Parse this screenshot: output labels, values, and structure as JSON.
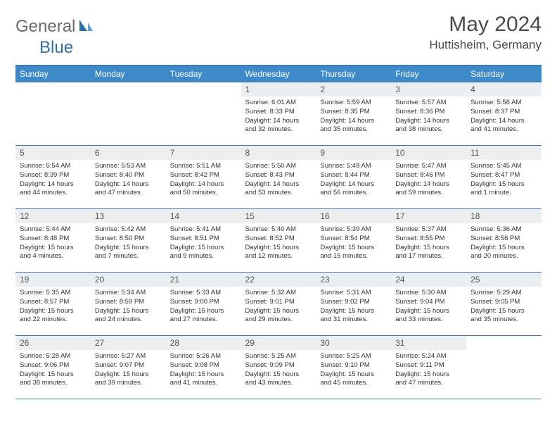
{
  "logo": {
    "part1": "General",
    "part2": "Blue"
  },
  "title": "May 2024",
  "location": "Huttisheim, Germany",
  "colors": {
    "header_bg": "#3e8ac9",
    "border": "#3e79b4",
    "daynum_bg": "#eceff1",
    "text_gray": "#4b4b4b",
    "logo_gray": "#6b6b6b",
    "logo_blue": "#2f6fa8"
  },
  "daysOfWeek": [
    "Sunday",
    "Monday",
    "Tuesday",
    "Wednesday",
    "Thursday",
    "Friday",
    "Saturday"
  ],
  "weeks": [
    [
      null,
      null,
      null,
      {
        "n": "1",
        "sr": "6:01 AM",
        "ss": "8:33 PM",
        "dl": "14 hours and 32 minutes."
      },
      {
        "n": "2",
        "sr": "5:59 AM",
        "ss": "8:35 PM",
        "dl": "14 hours and 35 minutes."
      },
      {
        "n": "3",
        "sr": "5:57 AM",
        "ss": "8:36 PM",
        "dl": "14 hours and 38 minutes."
      },
      {
        "n": "4",
        "sr": "5:56 AM",
        "ss": "8:37 PM",
        "dl": "14 hours and 41 minutes."
      }
    ],
    [
      {
        "n": "5",
        "sr": "5:54 AM",
        "ss": "8:39 PM",
        "dl": "14 hours and 44 minutes."
      },
      {
        "n": "6",
        "sr": "5:53 AM",
        "ss": "8:40 PM",
        "dl": "14 hours and 47 minutes."
      },
      {
        "n": "7",
        "sr": "5:51 AM",
        "ss": "8:42 PM",
        "dl": "14 hours and 50 minutes."
      },
      {
        "n": "8",
        "sr": "5:50 AM",
        "ss": "8:43 PM",
        "dl": "14 hours and 53 minutes."
      },
      {
        "n": "9",
        "sr": "5:48 AM",
        "ss": "8:44 PM",
        "dl": "14 hours and 56 minutes."
      },
      {
        "n": "10",
        "sr": "5:47 AM",
        "ss": "8:46 PM",
        "dl": "14 hours and 59 minutes."
      },
      {
        "n": "11",
        "sr": "5:45 AM",
        "ss": "8:47 PM",
        "dl": "15 hours and 1 minute."
      }
    ],
    [
      {
        "n": "12",
        "sr": "5:44 AM",
        "ss": "8:48 PM",
        "dl": "15 hours and 4 minutes."
      },
      {
        "n": "13",
        "sr": "5:42 AM",
        "ss": "8:50 PM",
        "dl": "15 hours and 7 minutes."
      },
      {
        "n": "14",
        "sr": "5:41 AM",
        "ss": "8:51 PM",
        "dl": "15 hours and 9 minutes."
      },
      {
        "n": "15",
        "sr": "5:40 AM",
        "ss": "8:52 PM",
        "dl": "15 hours and 12 minutes."
      },
      {
        "n": "16",
        "sr": "5:39 AM",
        "ss": "8:54 PM",
        "dl": "15 hours and 15 minutes."
      },
      {
        "n": "17",
        "sr": "5:37 AM",
        "ss": "8:55 PM",
        "dl": "15 hours and 17 minutes."
      },
      {
        "n": "18",
        "sr": "5:36 AM",
        "ss": "8:56 PM",
        "dl": "15 hours and 20 minutes."
      }
    ],
    [
      {
        "n": "19",
        "sr": "5:35 AM",
        "ss": "8:57 PM",
        "dl": "15 hours and 22 minutes."
      },
      {
        "n": "20",
        "sr": "5:34 AM",
        "ss": "8:59 PM",
        "dl": "15 hours and 24 minutes."
      },
      {
        "n": "21",
        "sr": "5:33 AM",
        "ss": "9:00 PM",
        "dl": "15 hours and 27 minutes."
      },
      {
        "n": "22",
        "sr": "5:32 AM",
        "ss": "9:01 PM",
        "dl": "15 hours and 29 minutes."
      },
      {
        "n": "23",
        "sr": "5:31 AM",
        "ss": "9:02 PM",
        "dl": "15 hours and 31 minutes."
      },
      {
        "n": "24",
        "sr": "5:30 AM",
        "ss": "9:04 PM",
        "dl": "15 hours and 33 minutes."
      },
      {
        "n": "25",
        "sr": "5:29 AM",
        "ss": "9:05 PM",
        "dl": "15 hours and 35 minutes."
      }
    ],
    [
      {
        "n": "26",
        "sr": "5:28 AM",
        "ss": "9:06 PM",
        "dl": "15 hours and 38 minutes."
      },
      {
        "n": "27",
        "sr": "5:27 AM",
        "ss": "9:07 PM",
        "dl": "15 hours and 39 minutes."
      },
      {
        "n": "28",
        "sr": "5:26 AM",
        "ss": "9:08 PM",
        "dl": "15 hours and 41 minutes."
      },
      {
        "n": "29",
        "sr": "5:25 AM",
        "ss": "9:09 PM",
        "dl": "15 hours and 43 minutes."
      },
      {
        "n": "30",
        "sr": "5:25 AM",
        "ss": "9:10 PM",
        "dl": "15 hours and 45 minutes."
      },
      {
        "n": "31",
        "sr": "5:24 AM",
        "ss": "9:11 PM",
        "dl": "15 hours and 47 minutes."
      },
      null
    ]
  ],
  "labels": {
    "sunrise": "Sunrise:",
    "sunset": "Sunset:",
    "daylight": "Daylight:"
  }
}
